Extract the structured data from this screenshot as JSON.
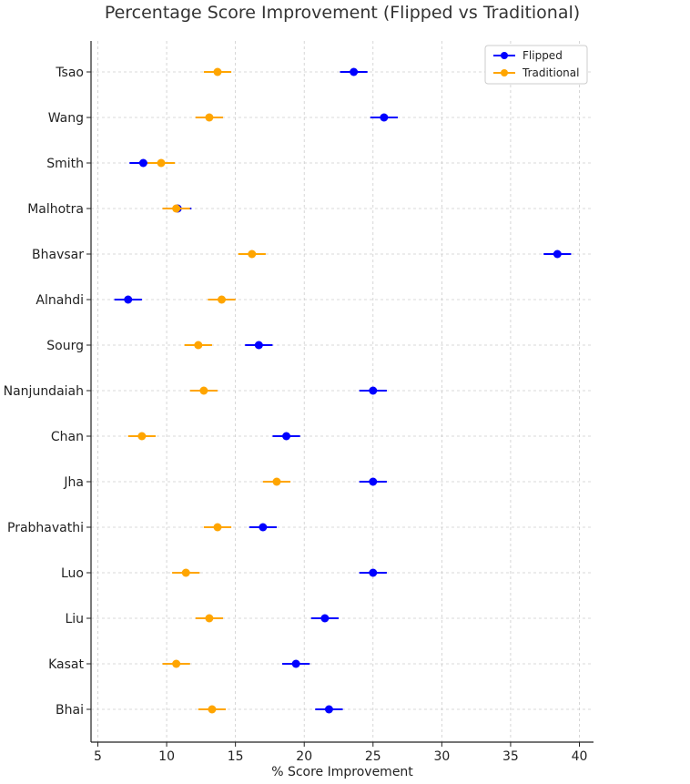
{
  "chart_data": {
    "type": "scatter",
    "title": "Percentage Score Improvement (Flipped vs Traditional)",
    "xlabel": "% Score Improvement",
    "ylabel": "",
    "xlim": [
      4.5,
      41
    ],
    "xticks": [
      5,
      10,
      15,
      20,
      25,
      30,
      35,
      40
    ],
    "grid": true,
    "legend_position": "top-right",
    "error_bar": 1,
    "categories": [
      "Tsao",
      "Wang",
      "Smith",
      "Malhotra",
      "Bhavsar",
      "Alnahdi",
      "Sourg",
      "Nanjundaiah",
      "Chan",
      "Jha",
      "Prabhavathi",
      "Luo",
      "Liu",
      "Kasat",
      "Bhai"
    ],
    "series": [
      {
        "name": "Flipped",
        "color": "#0000ff",
        "values": [
          23.6,
          25.8,
          8.3,
          10.8,
          38.4,
          7.2,
          16.7,
          25.0,
          18.7,
          25.0,
          17.0,
          25.0,
          21.5,
          19.4,
          21.8
        ]
      },
      {
        "name": "Traditional",
        "color": "#ffa500",
        "values": [
          13.7,
          13.1,
          9.6,
          10.7,
          16.2,
          14.0,
          12.3,
          12.7,
          8.2,
          18.0,
          13.7,
          11.4,
          13.1,
          10.7,
          13.3
        ]
      }
    ]
  }
}
